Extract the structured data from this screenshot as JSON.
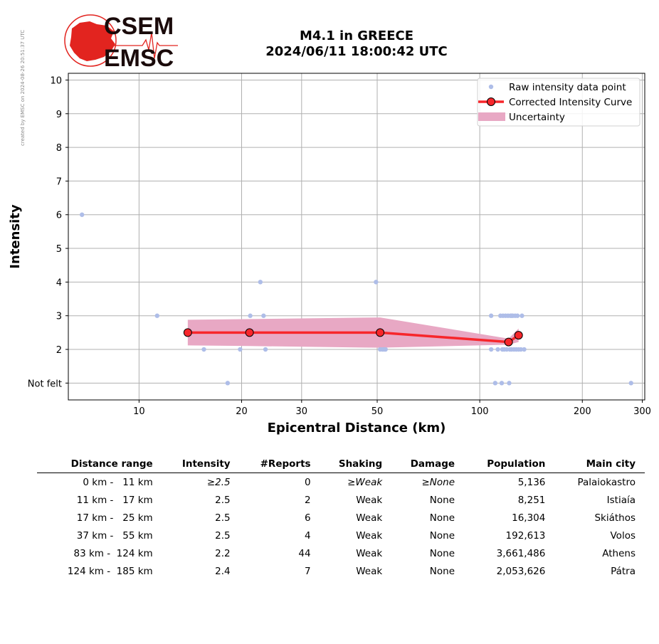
{
  "watermark": "created by EMSC on 2024-08-26 20:51:37 UTC",
  "logo": {
    "line1": "CSEM",
    "line2": "EMSC",
    "colors": {
      "red": "#e2241f",
      "dark": "#1a0a0a"
    }
  },
  "title": {
    "line1": "M4.1 in GREECE",
    "line2": "2024/06/11 18:00:42 UTC"
  },
  "colors": {
    "raw": "#aebde8",
    "curve": "#f7262b",
    "curve_marker": "#f7262b",
    "uncertainty": "#e8a8c4",
    "grid": "#b0b0b0"
  },
  "chart_data": {
    "type": "scatter",
    "xlabel": "Epicentral Distance (km)",
    "ylabel": "Intensity",
    "xscale": "log",
    "xlim": [
      6.2,
      305
    ],
    "ylim": [
      0.5,
      10.2
    ],
    "x_ticks": [
      10,
      20,
      30,
      50,
      100,
      200,
      300
    ],
    "x_tick_labels": [
      "10",
      "20",
      "30",
      "50",
      "100",
      "200",
      "300"
    ],
    "y_ticks": [
      1,
      2,
      3,
      4,
      5,
      6,
      7,
      8,
      9,
      10
    ],
    "y_tick_labels": [
      "Not felt",
      "2",
      "3",
      "4",
      "5",
      "6",
      "7",
      "8",
      "9",
      "10"
    ],
    "grid": true,
    "legend_position": "top-right",
    "legend": [
      "Raw intensity data point",
      "Corrected Intensity Curve",
      "Uncertainty"
    ],
    "raw_points": [
      [
        6.8,
        6
      ],
      [
        11.3,
        3
      ],
      [
        15.5,
        2
      ],
      [
        18.2,
        1
      ],
      [
        19.8,
        2
      ],
      [
        21.2,
        3
      ],
      [
        22.7,
        4
      ],
      [
        23.2,
        3
      ],
      [
        23.5,
        2
      ],
      [
        49.6,
        4
      ],
      [
        51.0,
        2
      ],
      [
        51.8,
        2
      ],
      [
        52.4,
        2
      ],
      [
        52.9,
        2
      ],
      [
        108,
        3
      ],
      [
        108,
        2
      ],
      [
        111,
        1
      ],
      [
        113,
        2
      ],
      [
        115,
        3
      ],
      [
        116,
        1
      ],
      [
        116.5,
        2
      ],
      [
        117,
        3
      ],
      [
        118,
        2
      ],
      [
        119,
        3
      ],
      [
        120,
        2
      ],
      [
        121,
        3
      ],
      [
        122,
        1
      ],
      [
        122.5,
        2
      ],
      [
        123,
        3
      ],
      [
        124,
        3
      ],
      [
        124,
        2
      ],
      [
        125,
        3
      ],
      [
        126,
        2
      ],
      [
        127,
        3
      ],
      [
        128,
        2
      ],
      [
        129,
        3
      ],
      [
        130,
        2
      ],
      [
        132,
        2
      ],
      [
        133,
        3
      ],
      [
        135,
        2
      ],
      [
        278,
        1
      ]
    ],
    "curve": {
      "x": [
        13.9,
        21.1,
        51.0,
        121.5,
        130.0
      ],
      "y": [
        2.5,
        2.5,
        2.5,
        2.22,
        2.42
      ]
    },
    "uncertainty": {
      "x": [
        13.9,
        21.1,
        51.0,
        121.5,
        130.0
      ],
      "upper": [
        2.88,
        2.9,
        2.95,
        2.32,
        2.62
      ],
      "lower": [
        2.12,
        2.1,
        2.05,
        2.14,
        2.22
      ]
    }
  },
  "table": {
    "headers": [
      "Distance range",
      "Intensity",
      "#Reports",
      "Shaking",
      "Damage",
      "Population",
      "Main city"
    ],
    "rows": [
      {
        "range": "0 km -   11 km",
        "intensity": "≥2.5",
        "reports": "0",
        "shaking": "≥Weak",
        "damage": "≥None",
        "population": "5,136",
        "city": "Palaiokastro"
      },
      {
        "range": "11 km -   17 km",
        "intensity": "2.5",
        "reports": "2",
        "shaking": "Weak",
        "damage": "None",
        "population": "8,251",
        "city": "Istiaía"
      },
      {
        "range": "17 km -   25 km",
        "intensity": "2.5",
        "reports": "6",
        "shaking": "Weak",
        "damage": "None",
        "population": "16,304",
        "city": "Skiáthos"
      },
      {
        "range": "37 km -   55 km",
        "intensity": "2.5",
        "reports": "4",
        "shaking": "Weak",
        "damage": "None",
        "population": "192,613",
        "city": "Volos"
      },
      {
        "range": "83 km -  124 km",
        "intensity": "2.2",
        "reports": "44",
        "shaking": "Weak",
        "damage": "None",
        "population": "3,661,486",
        "city": "Athens"
      },
      {
        "range": "124 km -  185 km",
        "intensity": "2.4",
        "reports": "7",
        "shaking": "Weak",
        "damage": "None",
        "population": "2,053,626",
        "city": "Pátra"
      }
    ]
  }
}
